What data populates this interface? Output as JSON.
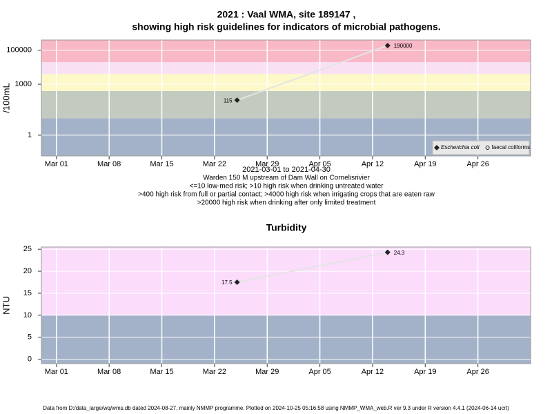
{
  "chart_data": [
    {
      "type": "line",
      "title": "2021 : Vaal WMA, site 189147 ,",
      "subtitle": "showing high risk guidelines for indicators of microbial pathogens.",
      "ylabel": "/100mL",
      "xlabel": "2021-03-01 to 2021-04-30",
      "notes": [
        "Warden 150 M upstream of Dam Wall on Cornelisrivier",
        "<=10 low-med risk; >10 high risk when drinking untreated water",
        ">400 high risk from full or partial contact; >4000 high risk when irrigating crops that are eaten raw",
        ">20000 high risk when drinking after only limited treatment"
      ],
      "log_y": true,
      "grid": true,
      "legend": "bottom-right",
      "x": [
        "2021-03-25",
        "2021-04-14"
      ],
      "series": [
        {
          "name": "Escherichia coli",
          "color": "#222222",
          "marker": "diamond",
          "values": [
            115,
            190000
          ]
        },
        {
          "name": "faecal coliforms",
          "color": "#222222",
          "marker": "circle",
          "values": [
            null,
            null
          ]
        }
      ],
      "xlim": [
        "2021-02-27",
        "2021-05-03"
      ],
      "xticks": [
        {
          "value": "2021-03-01",
          "label": "Mar 01"
        },
        {
          "value": "2021-03-08",
          "label": "Mar 08"
        },
        {
          "value": "2021-03-15",
          "label": "Mar 15"
        },
        {
          "value": "2021-03-22",
          "label": "Mar 22"
        },
        {
          "value": "2021-03-29",
          "label": "Mar 29"
        },
        {
          "value": "2021-04-05",
          "label": "Apr 05"
        },
        {
          "value": "2021-04-12",
          "label": "Apr 12"
        },
        {
          "value": "2021-04-19",
          "label": "Apr 19"
        },
        {
          "value": "2021-04-26",
          "label": "Apr 26"
        }
      ],
      "ylim": [
        0.06,
        400000
      ],
      "yticks": [
        1,
        1000,
        100000
      ],
      "bands": [
        {
          "from": 0.06,
          "to": 10,
          "color": "#a3b2c8"
        },
        {
          "from": 10,
          "to": 400,
          "color": "#c3cbc0"
        },
        {
          "from": 400,
          "to": 4000,
          "color": "#fdf8c8"
        },
        {
          "from": 4000,
          "to": 20000,
          "color": "#f9e0f3"
        },
        {
          "from": 20000,
          "to": 400000,
          "color": "#f8b8c6"
        }
      ]
    },
    {
      "type": "line",
      "title": "Turbidity",
      "ylabel": "NTU",
      "log_y": false,
      "grid": true,
      "x": [
        "2021-03-25",
        "2021-04-14"
      ],
      "series": [
        {
          "color": "#222222",
          "marker": "diamond",
          "values": [
            17.5,
            24.3
          ]
        }
      ],
      "xlim": [
        "2021-02-27",
        "2021-05-03"
      ],
      "xticks": [
        {
          "value": "2021-03-01",
          "label": "Mar 01"
        },
        {
          "value": "2021-03-08",
          "label": "Mar 08"
        },
        {
          "value": "2021-03-15",
          "label": "Mar 15"
        },
        {
          "value": "2021-03-22",
          "label": "Mar 22"
        },
        {
          "value": "2021-03-29",
          "label": "Mar 29"
        },
        {
          "value": "2021-04-05",
          "label": "Apr 05"
        },
        {
          "value": "2021-04-12",
          "label": "Apr 12"
        },
        {
          "value": "2021-04-19",
          "label": "Apr 19"
        },
        {
          "value": "2021-04-26",
          "label": "Apr 26"
        }
      ],
      "ylim": [
        -1,
        25.5
      ],
      "yticks": [
        0,
        5,
        10,
        15,
        20,
        25
      ],
      "bands": [
        {
          "from": -1,
          "to": 10,
          "color": "#a3b2c8"
        },
        {
          "from": 10,
          "to": 25.5,
          "color": "#fbdcfb"
        }
      ]
    }
  ],
  "footer": "Data from D:/data_large/wq/wms.db dated 2024-08-27, mainly NMMP programme. Plotted on 2024-10-25 05:16:58 using NMMP_WMA_web.R ver 9.3 under R version 4.4.1 (2024-06-14 ucrt)"
}
